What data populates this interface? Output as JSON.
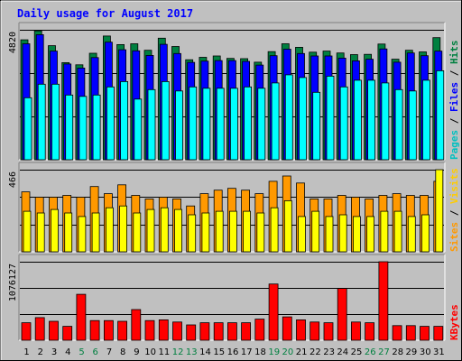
{
  "chart_data": {
    "type": "bar",
    "title": "Daily usage for August 2017",
    "categories": [
      "1",
      "2",
      "3",
      "4",
      "5",
      "6",
      "7",
      "8",
      "9",
      "10",
      "11",
      "12",
      "13",
      "14",
      "15",
      "16",
      "17",
      "18",
      "19",
      "20",
      "21",
      "22",
      "23",
      "24",
      "25",
      "26",
      "27",
      "28",
      "29",
      "30",
      "31"
    ],
    "weekend_days": [
      "5",
      "6",
      "12",
      "13",
      "19",
      "20",
      "26",
      "27"
    ],
    "panels": [
      {
        "id": "hits",
        "ymax_label": "4820",
        "ymax": 4820,
        "legend": [
          "Pages",
          "/",
          "Files",
          "/",
          "Hits"
        ],
        "series": [
          {
            "name": "Hits",
            "color": "#008040",
            "values": [
              4450,
              4780,
              4230,
              3600,
              3520,
              3950,
              4590,
              4270,
              4300,
              4060,
              4510,
              4200,
              3710,
              3800,
              3850,
              3760,
              3750,
              3620,
              4010,
              4300,
              4170,
              3990,
              4030,
              3960,
              3900,
              3910,
              4290,
              3730,
              4060,
              4000,
              4530
            ]
          },
          {
            "name": "Files",
            "color": "#0000ff",
            "values": [
              4300,
              4640,
              4030,
              3550,
              3400,
              3790,
              4360,
              4080,
              4040,
              3870,
              4280,
              3940,
              3610,
              3660,
              3680,
              3680,
              3650,
              3510,
              3860,
              4100,
              3940,
              3850,
              3850,
              3770,
              3670,
              3730,
              4110,
              3620,
              3960,
              3860,
              4030
            ]
          },
          {
            "name": "Pages",
            "color": "#00ffff",
            "values": [
              2300,
              2800,
              2800,
              2400,
              2350,
              2400,
              2700,
              2900,
              2250,
              2600,
              2900,
              2550,
              2700,
              2650,
              2650,
              2650,
              2700,
              2650,
              2850,
              3150,
              3050,
              2500,
              3100,
              2700,
              2950,
              2950,
              2850,
              2600,
              2550,
              2950,
              3300
            ]
          }
        ]
      },
      {
        "id": "visits",
        "ymax_label": "466",
        "ymax": 466,
        "legend": [
          "Sites",
          "/",
          "Visits"
        ],
        "series": [
          {
            "name": "Visits",
            "color": "#ff9900",
            "values": [
              340,
              310,
              310,
              320,
              310,
              370,
              330,
              380,
              320,
              300,
              310,
              300,
              260,
              330,
              350,
              360,
              350,
              330,
              400,
              430,
              390,
              300,
              300,
              320,
              310,
              300,
              320,
              330,
              320,
              320,
              400
            ]
          },
          {
            "name": "Sites",
            "color": "#ffff00",
            "values": [
              230,
              220,
              240,
              220,
              200,
              220,
              250,
              260,
              220,
              240,
              250,
              240,
              210,
              220,
              230,
              230,
              230,
              220,
              250,
              290,
              200,
              230,
              200,
              210,
              200,
              200,
              230,
              230,
              200,
              210,
              466
            ]
          }
        ]
      },
      {
        "id": "kbytes",
        "ymax_label": "1076127",
        "ymax": 1076127,
        "legend": [
          "KBytes"
        ],
        "series": [
          {
            "name": "KBytes",
            "color": "#ff0000",
            "values": [
              240000,
              310000,
              260000,
              190000,
              630000,
              270000,
              270000,
              260000,
              420000,
              270000,
              280000,
              250000,
              210000,
              240000,
              240000,
              240000,
              240000,
              290000,
              770000,
              320000,
              280000,
              250000,
              240000,
              710000,
              250000,
              240000,
              1076127,
              200000,
              200000,
              190000,
              190000
            ]
          }
        ]
      }
    ]
  }
}
